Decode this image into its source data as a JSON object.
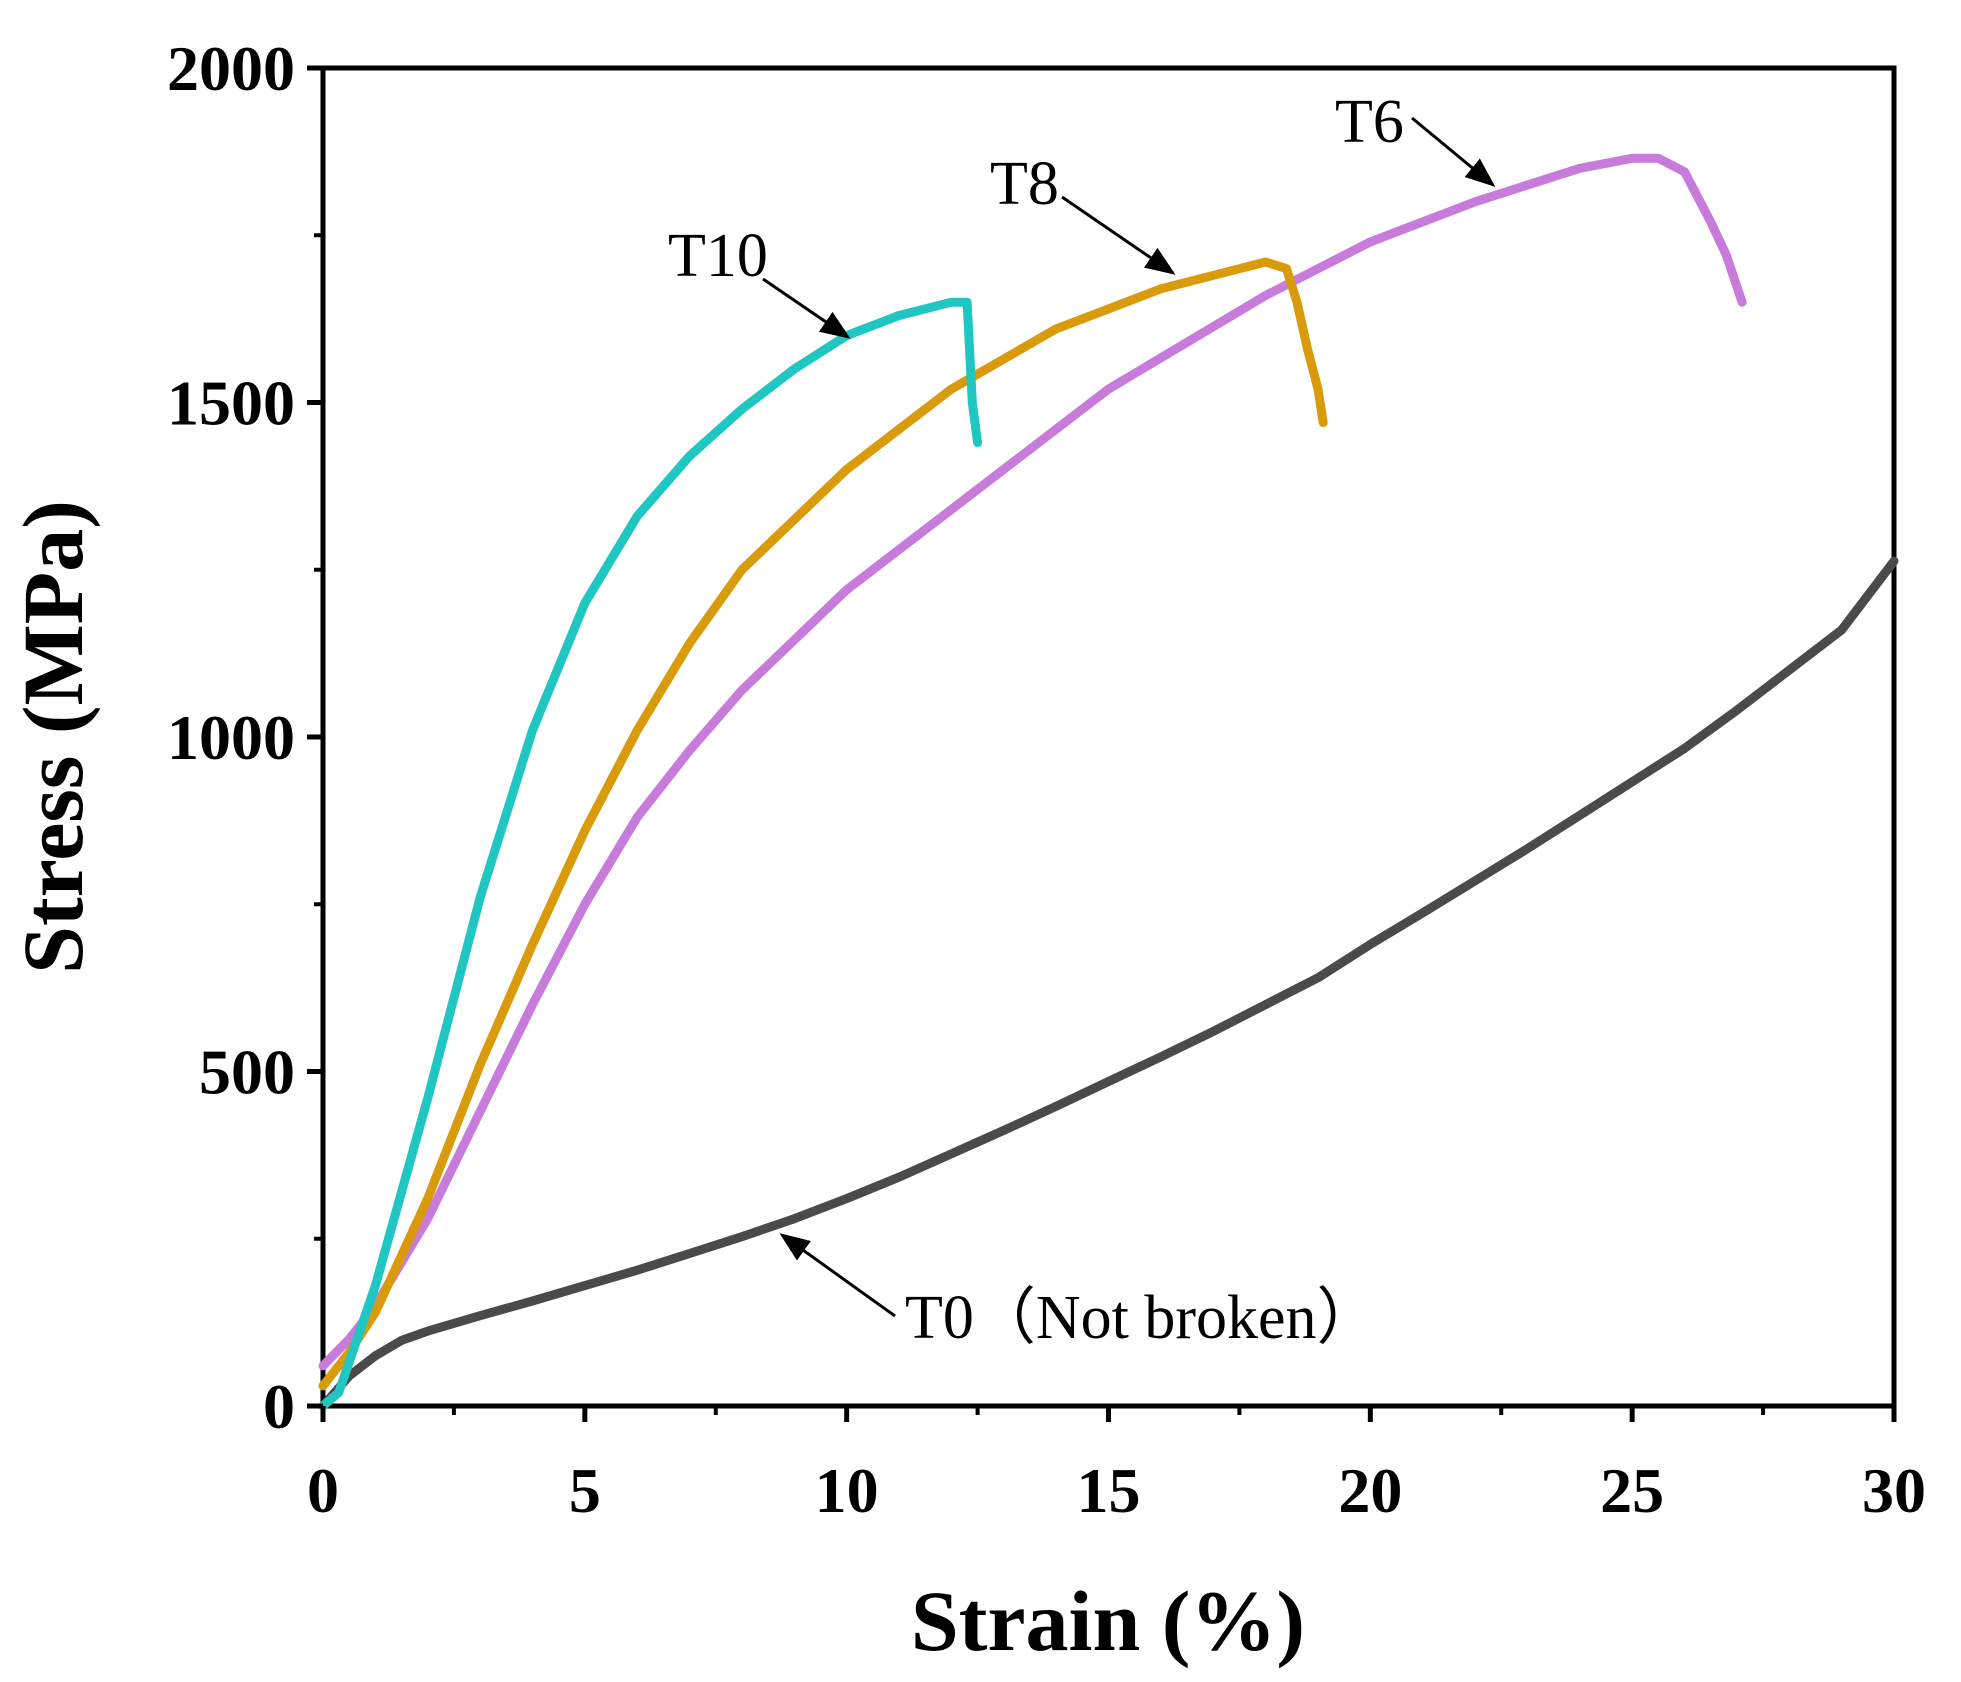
{
  "chart_data": {
    "type": "line",
    "title": "",
    "xlabel": "Strain (%)",
    "ylabel": "Stress (MPa)",
    "xlim": [
      0,
      30
    ],
    "ylim": [
      0,
      2000
    ],
    "xticks": [
      0,
      5,
      10,
      15,
      20,
      25,
      30
    ],
    "yticks": [
      0,
      500,
      1000,
      1500,
      2000
    ],
    "xtick_labels": [
      "0",
      "5",
      "10",
      "15",
      "20",
      "25",
      "30"
    ],
    "ytick_labels": [
      "0",
      "500",
      "1000",
      "1500",
      "2000"
    ],
    "grid": false,
    "series": [
      {
        "name": "T0",
        "label": "T0（Not broken）",
        "color": "#4a4a4a",
        "x": [
          0,
          0.5,
          1,
          1.5,
          2,
          3,
          4,
          5,
          6,
          7,
          8,
          9,
          10,
          11,
          12,
          13,
          14,
          15,
          16,
          17,
          18,
          19,
          20,
          21,
          22,
          23,
          24,
          25,
          26,
          27,
          28,
          29,
          30
        ],
        "y": [
          0,
          45,
          75,
          98,
          112,
          135,
          157,
          180,
          203,
          228,
          253,
          280,
          310,
          342,
          377,
          412,
          448,
          485,
          522,
          560,
          600,
          640,
          690,
          737,
          785,
          833,
          883,
          933,
          983,
          1040,
          1100,
          1160,
          1263
        ]
      },
      {
        "name": "T6",
        "label": "T6",
        "color": "#c77cdc",
        "x": [
          0,
          0.5,
          1,
          2,
          3,
          4,
          5,
          6,
          7,
          8,
          10,
          12,
          15,
          18,
          20,
          22,
          24,
          25,
          25.5,
          26,
          26.3,
          26.5,
          26.8,
          27.1
        ],
        "y": [
          60,
          100,
          150,
          280,
          440,
          600,
          750,
          880,
          980,
          1070,
          1220,
          1340,
          1520,
          1660,
          1740,
          1800,
          1850,
          1865,
          1865,
          1845,
          1800,
          1770,
          1720,
          1650
        ]
      },
      {
        "name": "T8",
        "label": "T8",
        "color": "#d99b0b",
        "x": [
          0,
          0.5,
          1,
          2,
          3,
          4,
          5,
          6,
          7,
          8,
          10,
          12,
          14,
          16,
          17.5,
          18,
          18.4,
          18.6,
          18.8,
          19,
          19.1
        ],
        "y": [
          30,
          80,
          140,
          310,
          510,
          690,
          860,
          1010,
          1140,
          1250,
          1400,
          1520,
          1610,
          1670,
          1700,
          1710,
          1700,
          1650,
          1580,
          1520,
          1470
        ]
      },
      {
        "name": "T10",
        "label": "T10",
        "color": "#1fc6c2",
        "x": [
          0,
          0.3,
          1,
          2,
          3,
          4,
          5,
          6,
          7,
          8,
          9,
          10,
          11,
          12,
          12.3,
          12.4,
          12.5
        ],
        "y": [
          0,
          20,
          180,
          460,
          760,
          1010,
          1200,
          1330,
          1420,
          1490,
          1550,
          1600,
          1630,
          1650,
          1650,
          1500,
          1440
        ]
      }
    ],
    "annotations": [
      {
        "text": "T10",
        "series": "T10"
      },
      {
        "text": "T8",
        "series": "T8"
      },
      {
        "text": "T6",
        "series": "T6"
      },
      {
        "text": "T0（Not broken）",
        "series": "T0"
      }
    ]
  }
}
